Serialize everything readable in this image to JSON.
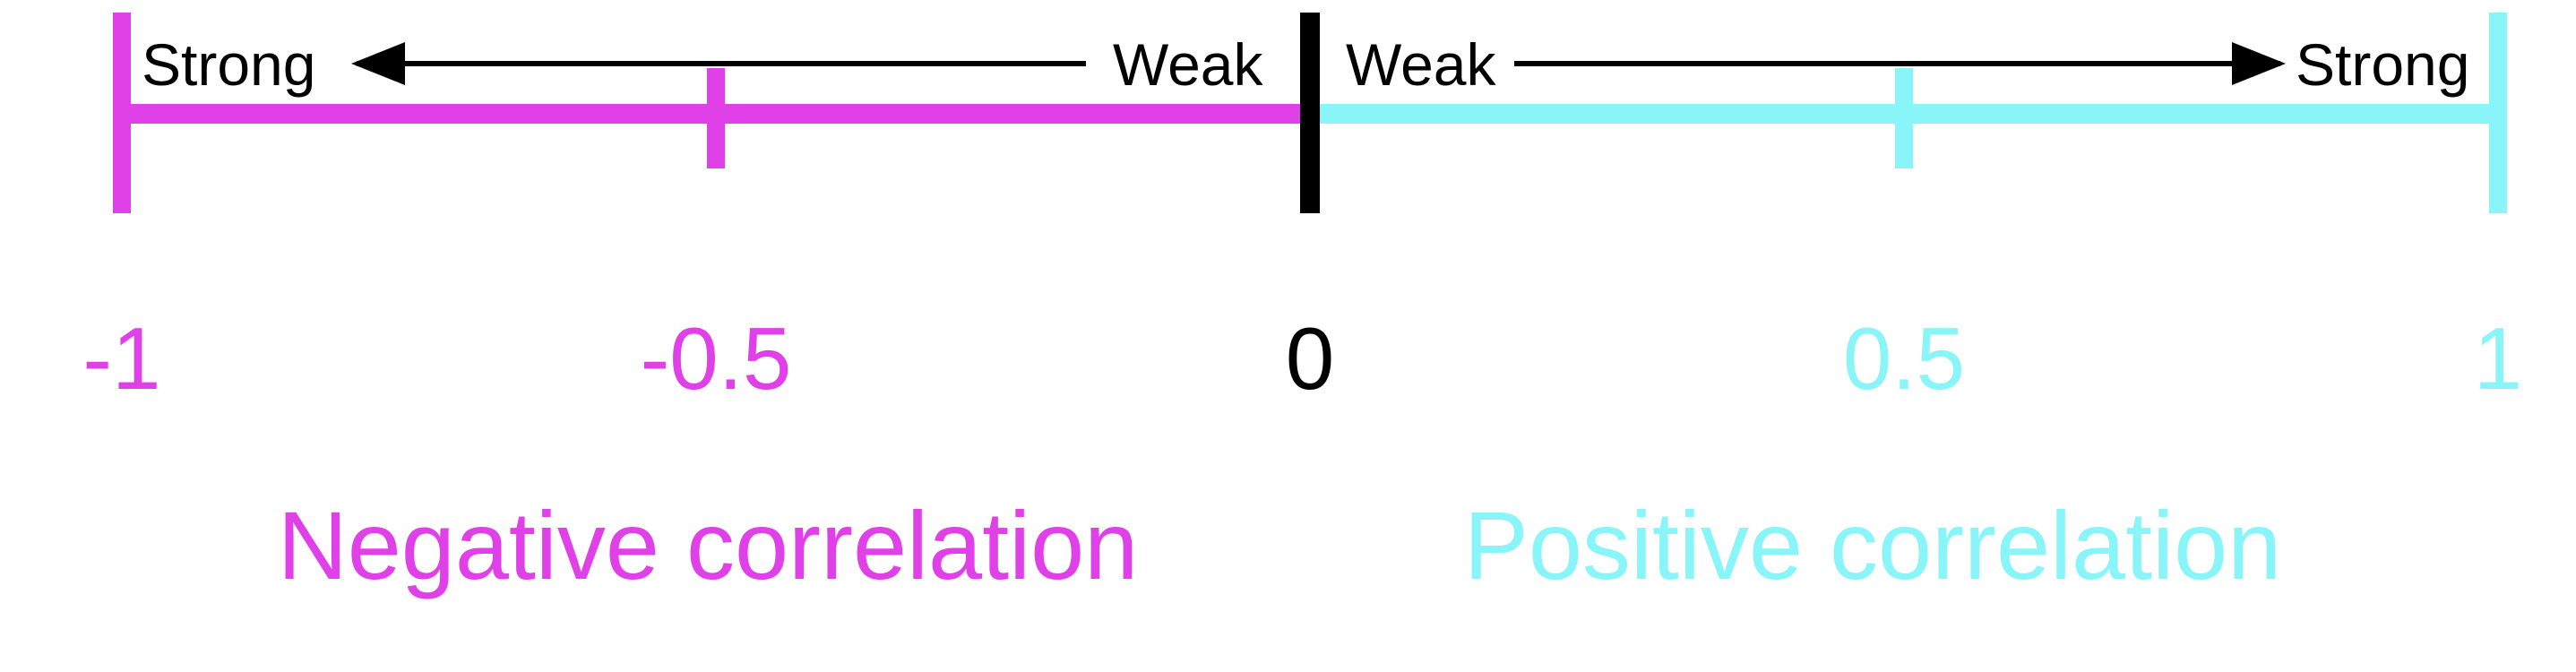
{
  "colors": {
    "negative": "#e040e8",
    "positive": "#8af5f8",
    "neutral": "#000000"
  },
  "scale": {
    "min": -1,
    "max": 1,
    "ticks": [
      {
        "value": -1,
        "label": "-1",
        "tone": "negative"
      },
      {
        "value": -0.5,
        "label": "-0.5",
        "tone": "negative"
      },
      {
        "value": 0,
        "label": "0",
        "tone": "neutral"
      },
      {
        "value": 0.5,
        "label": "0.5",
        "tone": "positive"
      },
      {
        "value": 1,
        "label": "1",
        "tone": "positive"
      }
    ]
  },
  "negative_side": {
    "strong_label": "Strong",
    "weak_label": "Weak",
    "title": "Negative correlation"
  },
  "positive_side": {
    "weak_label": "Weak",
    "strong_label": "Strong",
    "title": "Positive correlation"
  }
}
